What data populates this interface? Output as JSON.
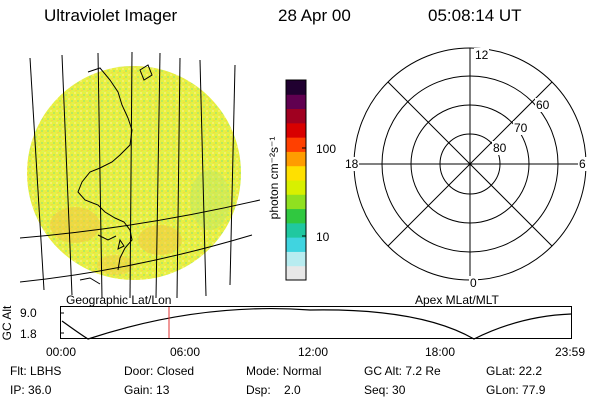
{
  "header": {
    "instrument": "Ultraviolet Imager",
    "date": "28 Apr 00",
    "time": "05:08:14 UT"
  },
  "colorbar": {
    "unit_label": "photon cm⁻²s⁻¹",
    "ticks": [
      {
        "label": "100",
        "value": 100
      },
      {
        "label": "10",
        "value": 10
      }
    ],
    "colors": [
      "#e8e8e8",
      "#b8ecf0",
      "#40d4e0",
      "#20c8a0",
      "#30c840",
      "#90e020",
      "#d8f000",
      "#ffe000",
      "#ff9c00",
      "#ff4000",
      "#d80000",
      "#a00020",
      "#600050",
      "#200030"
    ]
  },
  "left_map": {
    "label": "Geographic Lat/Lon"
  },
  "polar_plot": {
    "label": "Apex MLat/MLT",
    "mlt_labels": {
      "top": "12",
      "right": "6",
      "bottom": "0",
      "left": "18"
    },
    "lat_labels": [
      "60",
      "70",
      "80"
    ]
  },
  "altitude_plot": {
    "ylabel": "GC Alt",
    "yticks": [
      "9.0",
      "1.8"
    ],
    "xticks": [
      "00:00",
      "06:00",
      "12:00",
      "18:00",
      "23:59"
    ],
    "marker_color": "#e03030"
  },
  "status": [
    [
      {
        "k": "Flt:",
        "v": "LBHS"
      },
      {
        "k": "Door:",
        "v": "Closed"
      },
      {
        "k": "Mode:",
        "v": "Normal"
      },
      {
        "k": "GC Alt:",
        "v": "7.2 Re"
      },
      {
        "k": "GLat:",
        "v": "22.2"
      }
    ],
    [
      {
        "k": "IP:",
        "v": "36.0"
      },
      {
        "k": "Gain:",
        "v": "13"
      },
      {
        "k": "Dsp:",
        "v": "2.0"
      },
      {
        "k": "Seq:",
        "v": "30"
      },
      {
        "k": "GLon:",
        "v": "77.9"
      }
    ]
  ]
}
